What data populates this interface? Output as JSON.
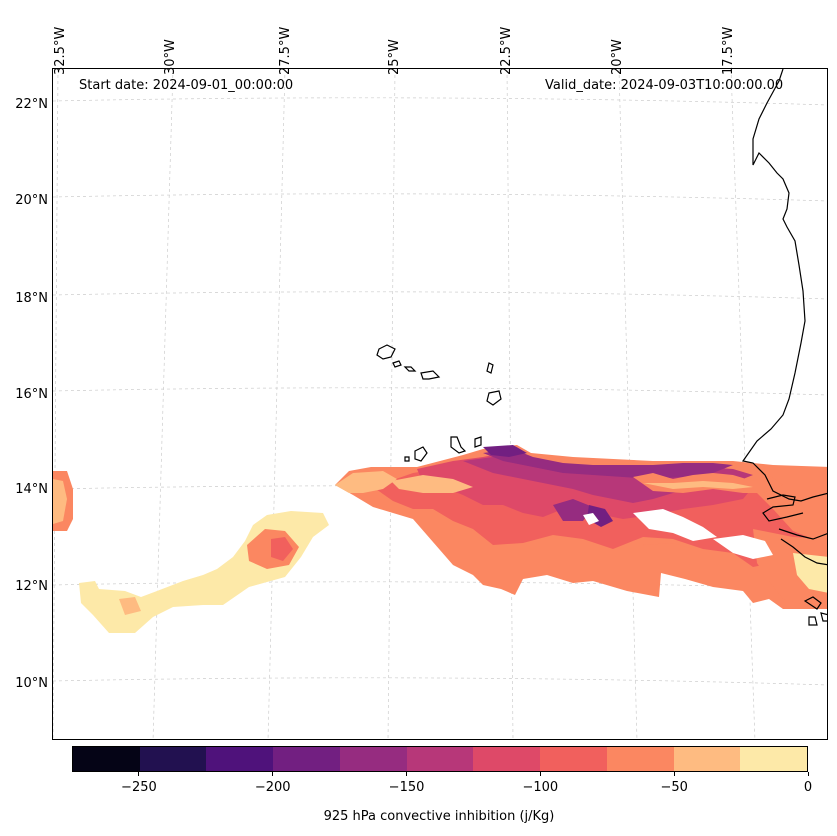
{
  "map": {
    "start_date": "Start date: 2024-09-01_00:00:00",
    "valid_date": "Valid_date: 2024-09-03T10:00:00.00",
    "lon_labels": [
      "32.5°W",
      "30°W",
      "27.5°W",
      "25°W",
      "22.5°W",
      "20°W",
      "17.5°W"
    ],
    "lat_labels": [
      "22°N",
      "20°N",
      "18°N",
      "16°N",
      "14°N",
      "12°N",
      "10°N"
    ]
  },
  "colorbar": {
    "label": "925 hPa convective inhibition (j/Kg)",
    "range": [
      -275,
      0
    ],
    "ticks": [
      "−250",
      "−200",
      "−150",
      "−100",
      "−50",
      "0"
    ],
    "tick_values": [
      -250,
      -200,
      -150,
      -100,
      -50,
      0
    ],
    "colors": [
      "#050416",
      "#221150",
      "#4f127b",
      "#721f81",
      "#962c80",
      "#b73779",
      "#de4968",
      "#f1605d",
      "#fb8761",
      "#febb81",
      "#fde9a8"
    ]
  },
  "colors": {
    "land_outline": "#000000",
    "grid": "#cccccc"
  }
}
